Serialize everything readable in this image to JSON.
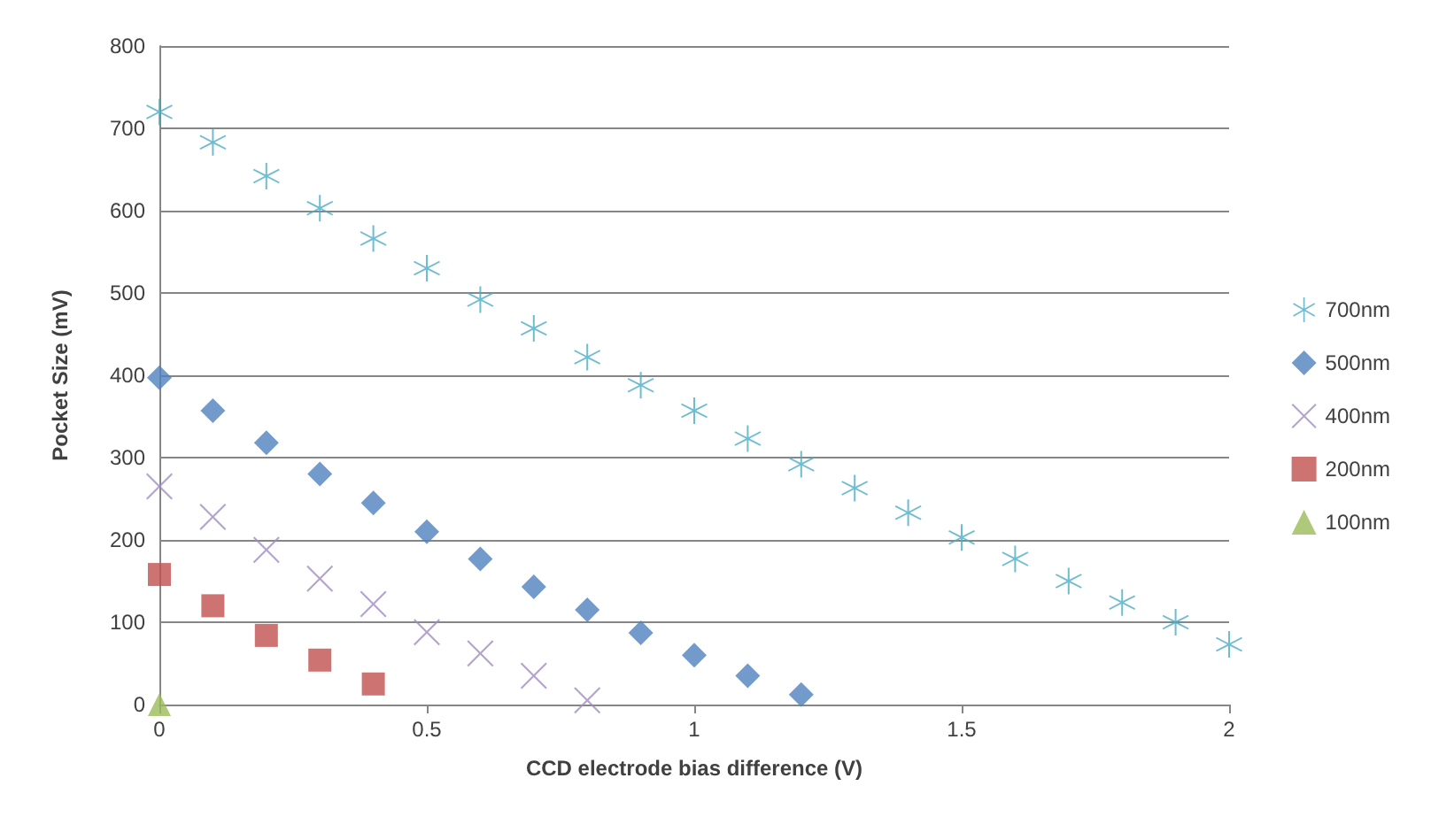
{
  "chart_data": {
    "type": "scatter",
    "xlabel": "CCD electrode bias difference (V)",
    "ylabel": "Pocket Size (mV)",
    "xlim": [
      0,
      2
    ],
    "xticks": [
      0,
      0.5,
      1,
      1.5,
      2
    ],
    "ylim": [
      0,
      800
    ],
    "yticks": [
      0,
      100,
      200,
      300,
      400,
      500,
      600,
      700,
      800
    ],
    "grid": "y",
    "legend": "right",
    "series": [
      {
        "name": "700nm",
        "color": "#4bacc6",
        "marker": "star",
        "x": [
          0,
          0.1,
          0.2,
          0.3,
          0.4,
          0.5,
          0.6,
          0.7,
          0.8,
          0.9,
          1,
          1.1,
          1.2,
          1.3,
          1.4,
          1.5,
          1.6,
          1.7,
          1.8,
          1.9,
          2
        ],
        "values": [
          720,
          683,
          642,
          603,
          566,
          530,
          492,
          457,
          422,
          388,
          357,
          323,
          292,
          263,
          233,
          203,
          177,
          150,
          124,
          100,
          73
        ]
      },
      {
        "name": "500nm",
        "color": "#4f81bd",
        "marker": "diamond",
        "x": [
          0,
          0.1,
          0.2,
          0.3,
          0.4,
          0.5,
          0.6,
          0.7,
          0.8,
          0.9,
          1,
          1.1,
          1.2
        ],
        "values": [
          397,
          357,
          318,
          280,
          245,
          210,
          177,
          143,
          115,
          87,
          60,
          35,
          12
        ]
      },
      {
        "name": "400nm",
        "color": "#a08cc0",
        "marker": "cross",
        "x": [
          0,
          0.1,
          0.2,
          0.3,
          0.4,
          0.5,
          0.6,
          0.7,
          0.8
        ],
        "values": [
          265,
          228,
          188,
          153,
          122,
          88,
          62,
          35,
          5
        ]
      },
      {
        "name": "200nm",
        "color": "#c0504d",
        "marker": "square",
        "x": [
          0,
          0.1,
          0.2,
          0.3,
          0.4
        ],
        "values": [
          158,
          120,
          84,
          54,
          25
        ]
      },
      {
        "name": "100nm",
        "color": "#9bbb59",
        "marker": "triangle",
        "x": [
          0
        ],
        "values": [
          0
        ]
      }
    ]
  }
}
